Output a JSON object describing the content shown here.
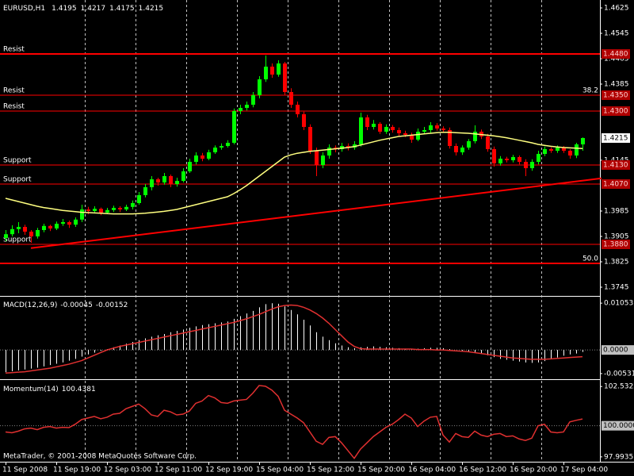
{
  "chart_data": [
    {
      "type": "candlestick",
      "title": "EURUSD,H1",
      "categories": [
        "11 Sep 2008",
        null,
        null,
        null,
        null,
        null,
        null,
        null,
        "11 Sep 19:00",
        null,
        null,
        null,
        null,
        null,
        null,
        null,
        "12 Sep 03:00",
        null,
        null,
        null,
        null,
        null,
        null,
        null,
        "12 Sep 11:00",
        null,
        null,
        null,
        null,
        null,
        null,
        null,
        "12 Sep 19:00",
        null,
        null,
        null,
        null,
        null,
        null,
        null,
        "15 Sep 04:00",
        null,
        null,
        null,
        null,
        null,
        null,
        null,
        "15 Sep 12:00",
        null,
        null,
        null,
        null,
        null,
        null,
        null,
        "15 Sep 20:00",
        null,
        null,
        null,
        null,
        null,
        null,
        null,
        "16 Sep 04:00",
        null,
        null,
        null,
        null,
        null,
        null,
        null,
        "16 Sep 12:00",
        null,
        null,
        null,
        null,
        null,
        null,
        null,
        "16 Sep 20:00",
        null,
        null,
        null,
        null,
        null,
        null,
        null,
        "17 Sep 04:00",
        null,
        null,
        null
      ],
      "open": [
        1.39,
        1.3912,
        1.3928,
        1.3935,
        1.392,
        1.3905,
        1.3925,
        1.3938,
        1.393,
        1.3945,
        1.395,
        1.3942,
        1.3958,
        1.399,
        1.3985,
        1.3992,
        1.398,
        1.3988,
        1.3995,
        1.399,
        1.3998,
        1.401,
        1.4035,
        1.406,
        1.4085,
        1.4075,
        1.4095,
        1.407,
        1.408,
        1.411,
        1.414,
        1.416,
        1.415,
        1.417,
        1.4185,
        1.419,
        1.42,
        1.43,
        1.431,
        1.432,
        1.435,
        1.44,
        1.444,
        1.4415,
        1.445,
        1.436,
        1.432,
        1.429,
        1.425,
        1.4175,
        1.413,
        1.416,
        1.4185,
        1.418,
        1.419,
        1.4185,
        1.4195,
        1.428,
        1.425,
        1.426,
        1.4235,
        1.425,
        1.424,
        1.423,
        1.4225,
        1.421,
        1.4235,
        1.424,
        1.4255,
        1.4245,
        1.424,
        1.419,
        1.417,
        1.4185,
        1.4205,
        1.4235,
        1.422,
        1.418,
        1.4135,
        1.415,
        1.4145,
        1.4155,
        1.414,
        1.412,
        1.414,
        1.4165,
        1.418,
        1.4175,
        1.4185,
        1.4175,
        1.416,
        1.4195
      ],
      "high": [
        1.3925,
        1.394,
        1.395,
        1.3942,
        1.3925,
        1.3932,
        1.3945,
        1.3942,
        1.3952,
        1.396,
        1.3955,
        1.3965,
        1.4005,
        1.3998,
        1.4,
        1.3996,
        1.3995,
        1.4002,
        1.4,
        1.4005,
        1.4018,
        1.4045,
        1.407,
        1.4095,
        1.409,
        1.4105,
        1.41,
        1.409,
        1.412,
        1.415,
        1.417,
        1.4168,
        1.4178,
        1.4192,
        1.4198,
        1.4208,
        1.4308,
        1.432,
        1.433,
        1.436,
        1.441,
        1.4475,
        1.445,
        1.446,
        1.4455,
        1.4372,
        1.433,
        1.4298,
        1.4258,
        1.4185,
        1.417,
        1.4195,
        1.4192,
        1.42,
        1.4198,
        1.4205,
        1.4295,
        1.4288,
        1.4272,
        1.4265,
        1.4258,
        1.4256,
        1.4248,
        1.4238,
        1.4232,
        1.4245,
        1.425,
        1.4265,
        1.4262,
        1.4252,
        1.4248,
        1.4198,
        1.4192,
        1.4212,
        1.4255,
        1.4242,
        1.4228,
        1.4188,
        1.4158,
        1.4156,
        1.4162,
        1.416,
        1.4148,
        1.4148,
        1.4175,
        1.4188,
        1.4186,
        1.4192,
        1.419,
        1.418,
        1.42,
        1.4217
      ],
      "low": [
        1.389,
        1.3905,
        1.3915,
        1.391,
        1.3885,
        1.3898,
        1.3918,
        1.3922,
        1.3925,
        1.3938,
        1.3932,
        1.3935,
        1.395,
        1.3975,
        1.3978,
        1.3972,
        1.3975,
        1.3982,
        1.3982,
        1.3985,
        1.399,
        1.4005,
        1.4028,
        1.405,
        1.4065,
        1.4068,
        1.406,
        1.4062,
        1.4075,
        1.4105,
        1.4132,
        1.4142,
        1.4145,
        1.4165,
        1.4178,
        1.4185,
        1.4195,
        1.429,
        1.4302,
        1.4312,
        1.434,
        1.4392,
        1.4405,
        1.4408,
        1.435,
        1.431,
        1.428,
        1.424,
        1.4165,
        1.4095,
        1.412,
        1.415,
        1.417,
        1.4172,
        1.4176,
        1.4178,
        1.4188,
        1.424,
        1.4242,
        1.4228,
        1.4228,
        1.4232,
        1.4222,
        1.4218,
        1.42,
        1.4205,
        1.4228,
        1.4232,
        1.4238,
        1.4232,
        1.4182,
        1.416,
        1.4162,
        1.4178,
        1.4198,
        1.4212,
        1.4172,
        1.4125,
        1.4128,
        1.4138,
        1.4138,
        1.4132,
        1.4095,
        1.4112,
        1.4132,
        1.4158,
        1.4168,
        1.4168,
        1.4168,
        1.415,
        1.4152,
        1.4175
      ],
      "close": [
        1.3912,
        1.3928,
        1.3935,
        1.392,
        1.3905,
        1.3925,
        1.3938,
        1.393,
        1.3945,
        1.395,
        1.3942,
        1.3958,
        1.399,
        1.3985,
        1.3992,
        1.398,
        1.3988,
        1.3995,
        1.399,
        1.3998,
        1.401,
        1.4035,
        1.406,
        1.4085,
        1.4075,
        1.4095,
        1.407,
        1.408,
        1.411,
        1.414,
        1.416,
        1.415,
        1.417,
        1.4185,
        1.419,
        1.42,
        1.43,
        1.431,
        1.432,
        1.435,
        1.44,
        1.444,
        1.4415,
        1.445,
        1.436,
        1.432,
        1.429,
        1.425,
        1.4175,
        1.413,
        1.416,
        1.4185,
        1.418,
        1.419,
        1.4185,
        1.4195,
        1.428,
        1.425,
        1.426,
        1.4235,
        1.425,
        1.424,
        1.423,
        1.4225,
        1.421,
        1.4235,
        1.424,
        1.4255,
        1.4245,
        1.424,
        1.419,
        1.417,
        1.4185,
        1.4205,
        1.4235,
        1.422,
        1.418,
        1.4135,
        1.415,
        1.4145,
        1.4155,
        1.414,
        1.412,
        1.414,
        1.4165,
        1.418,
        1.4175,
        1.4185,
        1.4175,
        1.416,
        1.4195,
        1.4215
      ],
      "up_color": "#00ff00",
      "down_color": "#ff0000",
      "ma": {
        "color": "#ffff80",
        "values": [
          1.4025,
          1.402,
          1.4015,
          1.401,
          1.4005,
          1.4,
          1.3996,
          1.3993,
          1.399,
          1.3987,
          1.3985,
          1.3983,
          1.3981,
          1.398,
          1.3979,
          1.3978,
          1.3977,
          1.3976,
          1.3976,
          1.3976,
          1.3976,
          1.3977,
          1.3978,
          1.398,
          1.3982,
          1.3984,
          1.3987,
          1.399,
          1.3995,
          1.4,
          1.4005,
          1.401,
          1.4015,
          1.402,
          1.4025,
          1.403,
          1.404,
          1.4052,
          1.4065,
          1.408,
          1.4095,
          1.411,
          1.4125,
          1.414,
          1.4155,
          1.4162,
          1.4167,
          1.417,
          1.4173,
          1.4175,
          1.4177,
          1.4179,
          1.4181,
          1.4183,
          1.4185,
          1.4188,
          1.4193,
          1.4198,
          1.4203,
          1.4208,
          1.4212,
          1.4216,
          1.422,
          1.4222,
          1.4224,
          1.4226,
          1.4228,
          1.423,
          1.4232,
          1.4233,
          1.4233,
          1.4232,
          1.4231,
          1.423,
          1.4228,
          1.4226,
          1.4224,
          1.4222,
          1.4219,
          1.4216,
          1.4212,
          1.4208,
          1.4204,
          1.42,
          1.4195,
          1.4192,
          1.4189,
          1.4187,
          1.4185,
          1.4184,
          1.4183,
          1.4182
        ]
      },
      "levels": {
        "names": [
          "Resist",
          "Resist",
          "Resist",
          "Support",
          "Support",
          "Support"
        ],
        "values": [
          1.448,
          1.435,
          1.43,
          1.413,
          1.407,
          1.388
        ],
        "value_labels": [
          "1.4480",
          "1.4350",
          "1.4300",
          "1.4130",
          "1.4070",
          "1.3880"
        ],
        "color": "#ff0000"
      },
      "fibo": {
        "levels": [
          38.2,
          {
            "value": 50,
            "label": "50.0"
          }
        ],
        "prices": [
          1.435,
          1.382
        ]
      },
      "trendline": {
        "x": [
          4,
          94
        ],
        "values": [
          1.3868,
          1.4088
        ]
      },
      "ylim": [
        1.372,
        1.465
      ],
      "yticks": [
        1.4625,
        1.4545,
        1.4465,
        1.4385,
        1.4145,
        1.3985,
        1.3905,
        1.3825,
        1.3745
      ]
    },
    {
      "type": "macd",
      "title": "MACD(12,26,9)",
      "series": [
        {
          "color": "#ffffff",
          "values": [
            -0.005,
            -0.0048,
            -0.0046,
            -0.0044,
            -0.0042,
            -0.004,
            -0.0037,
            -0.0034,
            -0.0031,
            -0.0028,
            -0.0024,
            -0.002,
            -0.0015,
            -0.001,
            -0.0006,
            -0.0002,
            0.0002,
            0.0006,
            0.001,
            0.0014,
            0.0018,
            0.0022,
            0.0026,
            0.003,
            0.0033,
            0.0036,
            0.004,
            0.0043,
            0.0046,
            0.005,
            0.0053,
            0.0056,
            0.0058,
            0.006,
            0.0062,
            0.0064,
            0.007,
            0.0076,
            0.0082,
            0.0088,
            0.0096,
            0.0103,
            0.0105,
            0.0104,
            0.0098,
            0.009,
            0.008,
            0.0068,
            0.0055,
            0.004,
            0.003,
            0.0022,
            0.0015,
            0.001,
            0.0006,
            0.0004,
            0.0006,
            0.0007,
            0.0008,
            0.0007,
            0.0006,
            0.0005,
            0.0004,
            0.0003,
            0.0002,
            0.0003,
            0.0004,
            0.0005,
            0.0005,
            0.0004,
            0.0002,
            0.0,
            -0.0002,
            -0.0004,
            -0.0006,
            -0.0008,
            -0.0012,
            -0.0016,
            -0.002,
            -0.0022,
            -0.0024,
            -0.0026,
            -0.0028,
            -0.0029,
            -0.0028,
            -0.0025,
            -0.0021,
            -0.0017,
            -0.0013,
            -0.001,
            -0.0008,
            -0.00045
          ]
        },
        {
          "color": "#e03030",
          "values": [
            -0.0052,
            -0.0051,
            -0.005,
            -0.0049,
            -0.0047,
            -0.0045,
            -0.0043,
            -0.0041,
            -0.0038,
            -0.0035,
            -0.0032,
            -0.0028,
            -0.0024,
            -0.0018,
            -0.0012,
            -0.0006,
            0.0,
            0.0004,
            0.0008,
            0.0011,
            0.0014,
            0.0017,
            0.002,
            0.0023,
            0.0026,
            0.0029,
            0.0032,
            0.0035,
            0.0038,
            0.0041,
            0.0044,
            0.0047,
            0.005,
            0.0053,
            0.0056,
            0.0059,
            0.0062,
            0.0066,
            0.007,
            0.0075,
            0.008,
            0.0086,
            0.0092,
            0.0097,
            0.01,
            0.0101,
            0.01,
            0.0096,
            0.009,
            0.0082,
            0.0072,
            0.006,
            0.0046,
            0.0032,
            0.0018,
            0.0008,
            0.0003,
            0.0002,
            0.0002,
            0.0002,
            0.0002,
            0.0002,
            0.0002,
            0.0002,
            0.0002,
            0.0001,
            0.0001,
            0.0001,
            0.0,
            0.0,
            -0.0001,
            -0.0002,
            -0.0003,
            -0.0004,
            -0.0006,
            -0.0008,
            -0.001,
            -0.0012,
            -0.0014,
            -0.0016,
            -0.0018,
            -0.0019,
            -0.002,
            -0.0021,
            -0.0021,
            -0.0021,
            -0.002,
            -0.0019,
            -0.0018,
            -0.0017,
            -0.0016,
            -0.00152
          ]
        }
      ],
      "ylim": [
        -0.0064,
        0.0118
      ],
      "yticks": [
        0.01053,
        -0.00531
      ],
      "level": {
        "value": 0,
        "label": "0.0000"
      }
    },
    {
      "type": "line",
      "title": "Momentum(14)",
      "color": "#e03030",
      "values": [
        99.6,
        99.55,
        99.65,
        99.8,
        99.85,
        99.75,
        99.9,
        99.95,
        99.85,
        99.9,
        99.88,
        100.1,
        100.4,
        100.5,
        100.6,
        100.45,
        100.55,
        100.75,
        100.8,
        101.1,
        101.25,
        101.4,
        101.1,
        100.7,
        100.6,
        101.0,
        100.9,
        100.7,
        100.75,
        100.95,
        101.45,
        101.6,
        101.95,
        101.8,
        101.5,
        101.45,
        101.6,
        101.65,
        101.7,
        102.1,
        102.6,
        102.55,
        102.3,
        101.9,
        101.0,
        100.75,
        100.5,
        100.2,
        99.6,
        99.0,
        98.8,
        99.25,
        99.3,
        98.9,
        98.4,
        97.9,
        98.5,
        98.9,
        99.3,
        99.6,
        99.9,
        100.1,
        100.4,
        100.75,
        100.5,
        99.95,
        100.3,
        100.55,
        100.6,
        99.4,
        98.95,
        99.5,
        99.3,
        99.25,
        99.65,
        99.4,
        99.3,
        99.45,
        99.5,
        99.3,
        99.35,
        99.15,
        99.05,
        99.2,
        100.0,
        100.1,
        99.6,
        99.55,
        99.6,
        100.25,
        100.35,
        100.4381
      ],
      "ylim": [
        97.68,
        102.9
      ],
      "yticks": [
        102.5322,
        97.9935
      ],
      "level": {
        "value": 100,
        "label": "100.0000"
      }
    }
  ],
  "footer": "MetaTrader, © 2001-2008 MetaQuotes Software Corp."
}
